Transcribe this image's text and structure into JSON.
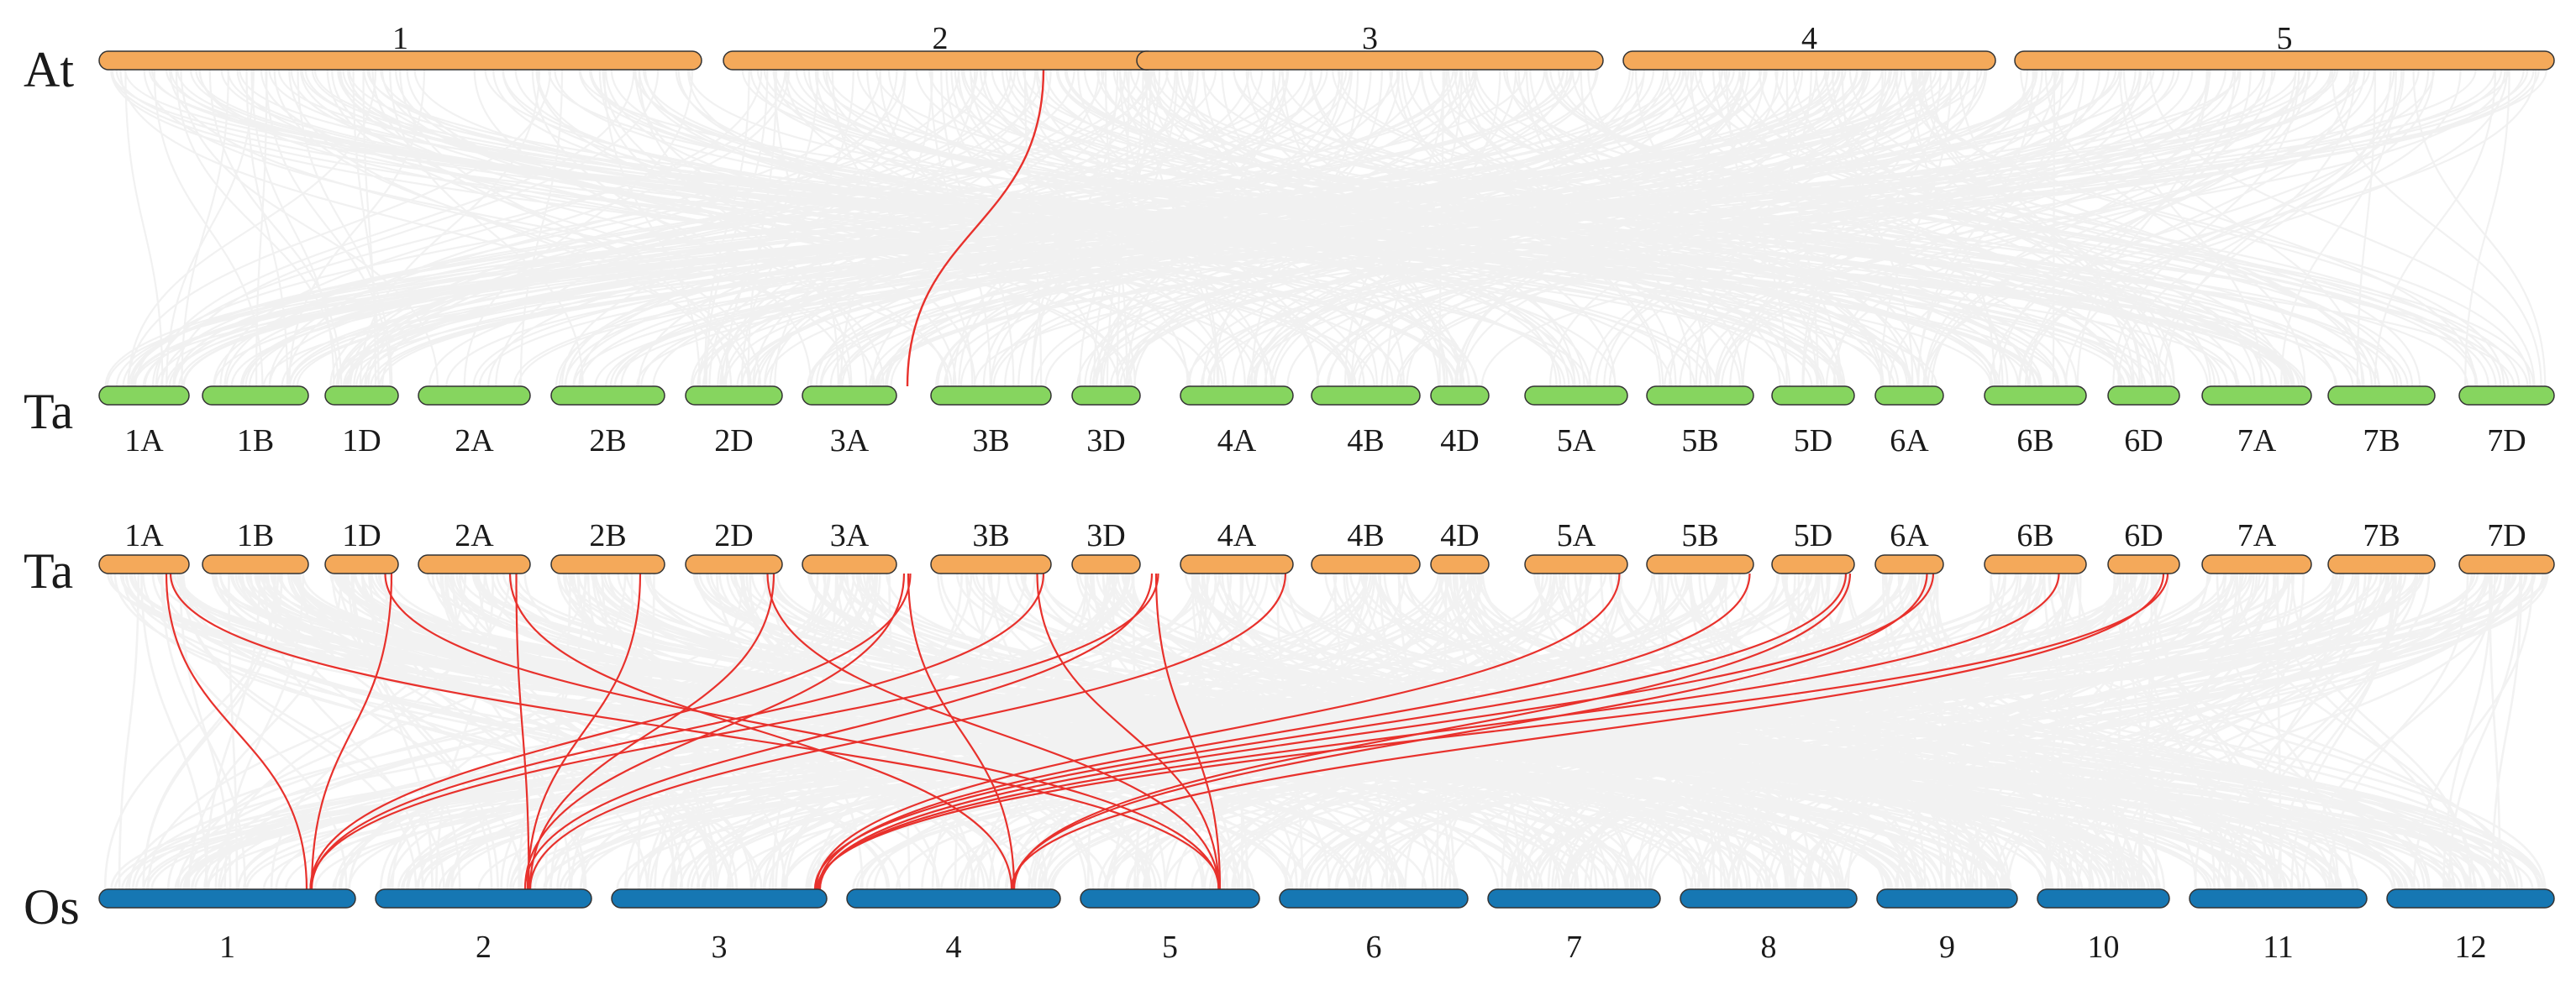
{
  "species_labels": {
    "top": "At",
    "middle_upper": "Ta",
    "middle_lower": "Ta",
    "bottom": "Os"
  },
  "colors": {
    "orange": "#F4A95A",
    "green": "#86D55F",
    "blue": "#1677B3",
    "background_link": "#E6E6E6",
    "highlight_link": "#E8312C",
    "outline": "#333333"
  },
  "tracks": {
    "at": [
      "1",
      "2",
      "3",
      "4",
      "5"
    ],
    "ta_green": [
      "1A",
      "1B",
      "1D",
      "2A",
      "2B",
      "2D",
      "3A",
      "3B",
      "3D",
      "4A",
      "4B",
      "4D",
      "5A",
      "5B",
      "5D",
      "6A",
      "6B",
      "6D",
      "7A",
      "7B",
      "7D"
    ],
    "ta_orange": [
      "1A",
      "1B",
      "1D",
      "2A",
      "2B",
      "2D",
      "3A",
      "3B",
      "3D",
      "4A",
      "4B",
      "4D",
      "5A",
      "5B",
      "5D",
      "6A",
      "6B",
      "6D",
      "7A",
      "7B",
      "7D"
    ],
    "os": [
      "1",
      "2",
      "3",
      "4",
      "5",
      "6",
      "7",
      "8",
      "9",
      "10",
      "11",
      "12"
    ]
  },
  "highlighted_links": {
    "At_to_Ta": [
      {
        "from": "2",
        "to": "3A"
      }
    ],
    "Ta_to_Os": [
      {
        "from": "1A",
        "to": "1"
      },
      {
        "from": "1A",
        "to": "5"
      },
      {
        "from": "1D",
        "to": "1"
      },
      {
        "from": "1D",
        "to": "5"
      },
      {
        "from": "2A",
        "to": "2"
      },
      {
        "from": "2A",
        "to": "4"
      },
      {
        "from": "2B",
        "to": "2"
      },
      {
        "from": "2D",
        "to": "2"
      },
      {
        "from": "2D",
        "to": "5"
      },
      {
        "from": "3A",
        "to": "1"
      },
      {
        "from": "3A",
        "to": "2"
      },
      {
        "from": "3A",
        "to": "4"
      },
      {
        "from": "3B",
        "to": "1"
      },
      {
        "from": "3B",
        "to": "5"
      },
      {
        "from": "3D",
        "to": "1"
      },
      {
        "from": "3D",
        "to": "2"
      },
      {
        "from": "3D",
        "to": "5"
      },
      {
        "from": "4A",
        "to": "2"
      },
      {
        "from": "5A",
        "to": "3"
      },
      {
        "from": "5B",
        "to": "3"
      },
      {
        "from": "5D",
        "to": "3"
      },
      {
        "from": "5D",
        "to": "4"
      },
      {
        "from": "6A",
        "to": "3"
      },
      {
        "from": "6A",
        "to": "4"
      },
      {
        "from": "6B",
        "to": "3"
      },
      {
        "from": "6D",
        "to": "4"
      },
      {
        "from": "6D",
        "to": "3"
      }
    ]
  }
}
